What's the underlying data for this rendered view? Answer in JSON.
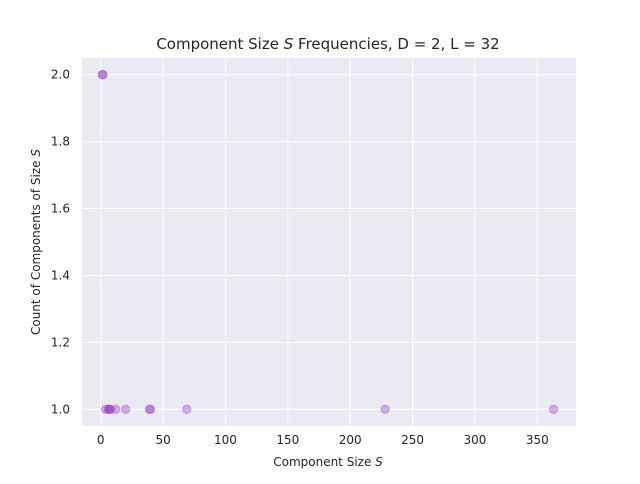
{
  "chart_data": {
    "type": "scatter",
    "title": "Component Size S Frequencies, D = 2, L = 32",
    "title_parts": {
      "prefix": "Component Size ",
      "var": "S",
      "suffix": " Frequencies, D = 2, L = 32"
    },
    "xlabel": "Component Size S",
    "xlabel_parts": {
      "prefix": "Component Size ",
      "var": "S"
    },
    "ylabel": "Count of Components of Size S",
    "ylabel_parts": {
      "prefix": "Count of Components of Size ",
      "var": "S"
    },
    "xlim": [
      -15,
      381
    ],
    "ylim": [
      0.95,
      2.05
    ],
    "x_ticks": [
      0,
      50,
      100,
      150,
      200,
      250,
      300,
      350
    ],
    "x_tick_labels": [
      "0",
      "50",
      "100",
      "150",
      "200",
      "250",
      "300",
      "350"
    ],
    "y_ticks": [
      1.0,
      1.2,
      1.4,
      1.6,
      1.8,
      2.0
    ],
    "y_tick_labels": [
      "1.0",
      "1.2",
      "1.4",
      "1.6",
      "1.8",
      "2.0"
    ],
    "grid": true,
    "style": {
      "background": "#eaeaf2",
      "grid_color": "#ffffff",
      "point_color": "#9932cc",
      "point_alpha": 0.35
    },
    "points": [
      {
        "x": 1,
        "y": 2
      },
      {
        "x": 2,
        "y": 2
      },
      {
        "x": 4,
        "y": 1
      },
      {
        "x": 6,
        "y": 1
      },
      {
        "x": 7,
        "y": 1
      },
      {
        "x": 8,
        "y": 1
      },
      {
        "x": 12,
        "y": 1
      },
      {
        "x": 20,
        "y": 1
      },
      {
        "x": 39,
        "y": 1
      },
      {
        "x": 40,
        "y": 1
      },
      {
        "x": 69,
        "y": 1
      },
      {
        "x": 228,
        "y": 1
      },
      {
        "x": 363,
        "y": 1
      }
    ]
  }
}
